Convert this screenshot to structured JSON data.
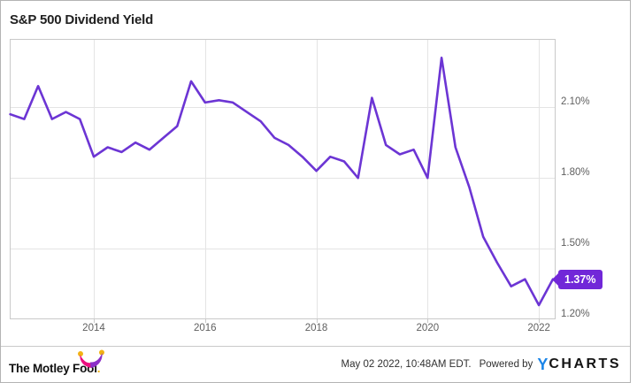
{
  "header": {
    "title": "S&P 500 Dividend Yield"
  },
  "chart_data": {
    "type": "line",
    "title": "S&P 500 Dividend Yield",
    "series_name": "S&P 500 Dividend Yield",
    "x": [
      2012.5,
      2012.75,
      2013,
      2013.25,
      2013.5,
      2013.75,
      2014,
      2014.25,
      2014.5,
      2014.75,
      2015,
      2015.25,
      2015.5,
      2015.75,
      2016,
      2016.25,
      2016.5,
      2016.75,
      2017,
      2017.25,
      2017.5,
      2017.75,
      2018,
      2018.25,
      2018.5,
      2018.75,
      2019,
      2019.25,
      2019.5,
      2019.75,
      2020,
      2020.25,
      2020.5,
      2020.75,
      2021,
      2021.25,
      2021.5,
      2021.75,
      2022,
      2022.25
    ],
    "values": [
      2.07,
      2.05,
      2.19,
      2.05,
      2.08,
      2.05,
      1.89,
      1.93,
      1.91,
      1.95,
      1.92,
      1.97,
      2.02,
      2.21,
      2.12,
      2.13,
      2.12,
      2.08,
      2.04,
      1.97,
      1.94,
      1.89,
      1.83,
      1.89,
      1.87,
      1.8,
      2.14,
      1.94,
      1.9,
      1.92,
      1.8,
      2.31,
      1.93,
      1.76,
      1.55,
      1.44,
      1.34,
      1.37,
      1.26,
      1.37
    ],
    "last_value_label": "1.37%",
    "x_ticks": {
      "values": [
        2014,
        2016,
        2018,
        2020,
        2022
      ],
      "labels": [
        "2014",
        "2016",
        "2018",
        "2020",
        "2022"
      ]
    },
    "y_ticks": {
      "values": [
        2.1,
        1.8,
        1.5,
        1.2
      ],
      "labels": [
        "2.10%",
        "1.80%",
        "1.50%",
        "1.20%"
      ]
    },
    "xlim": [
      2012.49,
      2022.3
    ],
    "ylim": [
      1.2,
      2.39
    ],
    "grid": true,
    "legend": false,
    "line_color": "#6c35d4",
    "value_format": "percent"
  },
  "badge": {
    "label": "1.37%",
    "bg": "#7127d8"
  },
  "footer": {
    "brand": "The Motley Fool",
    "brand_period": ".",
    "timestamp": "May 02 2022, 10:48AM EDT.",
    "powered_by": "Powered by",
    "ycharts_y": "Y",
    "ycharts_rest": "CHARTS"
  },
  "colors": {
    "accent_line": "#6c35d4",
    "badge_bg": "#7127d8",
    "ycharts_blue": "#1b85e8",
    "mf_pink": "#ec0f7f",
    "mf_purple": "#8b2fc9",
    "mf_yellow": "#f2b214"
  }
}
